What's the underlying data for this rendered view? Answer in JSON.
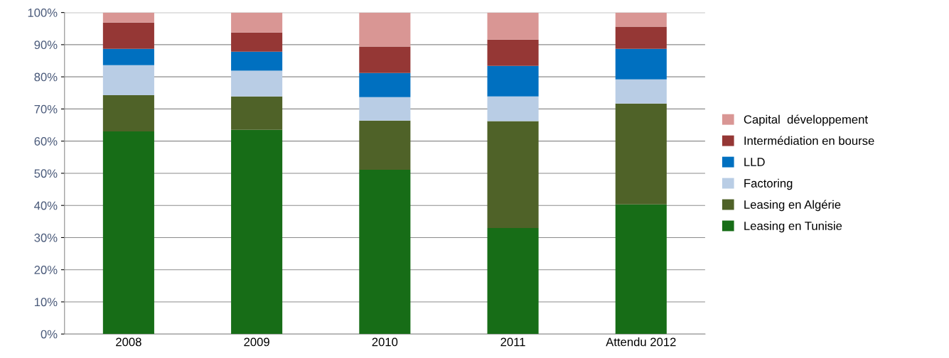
{
  "chart_data": {
    "type": "bar",
    "stacked": true,
    "categories": [
      "2008",
      "2009",
      "2010",
      "2011",
      "Attendu 2012"
    ],
    "series": [
      {
        "name": "Leasing en Tunisie",
        "color": "#176d17",
        "values": [
          63.0,
          63.5,
          51.1,
          33.0,
          40.3
        ]
      },
      {
        "name": "Leasing en Algérie",
        "color": "#4f6228",
        "values": [
          11.3,
          10.4,
          15.3,
          33.2,
          31.4
        ]
      },
      {
        "name": "Factoring",
        "color": "#b9cde5",
        "values": [
          9.3,
          8.0,
          7.3,
          7.7,
          7.5
        ]
      },
      {
        "name": "LLD",
        "color": "#0070c0",
        "values": [
          5.1,
          5.9,
          7.5,
          9.5,
          9.5
        ]
      },
      {
        "name": "Intermédiation en bourse",
        "color": "#953735",
        "values": [
          8.2,
          6.0,
          8.2,
          8.2,
          6.9
        ]
      },
      {
        "name": "Capital  développement",
        "color": "#d99694",
        "values": [
          3.1,
          6.2,
          10.6,
          8.4,
          4.4
        ]
      }
    ],
    "ylim": [
      0,
      100
    ],
    "yticks": [
      {
        "value": 0,
        "label": "0%"
      },
      {
        "value": 10,
        "label": "10%"
      },
      {
        "value": 20,
        "label": "20%"
      },
      {
        "value": 30,
        "label": "30%"
      },
      {
        "value": 40,
        "label": "40%"
      },
      {
        "value": 50,
        "label": "50%"
      },
      {
        "value": 60,
        "label": "60%"
      },
      {
        "value": 70,
        "label": "70%"
      },
      {
        "value": 80,
        "label": "80%"
      },
      {
        "value": 90,
        "label": "90%"
      },
      {
        "value": 100,
        "label": "100%"
      }
    ],
    "grid": "y",
    "legend": "right"
  }
}
